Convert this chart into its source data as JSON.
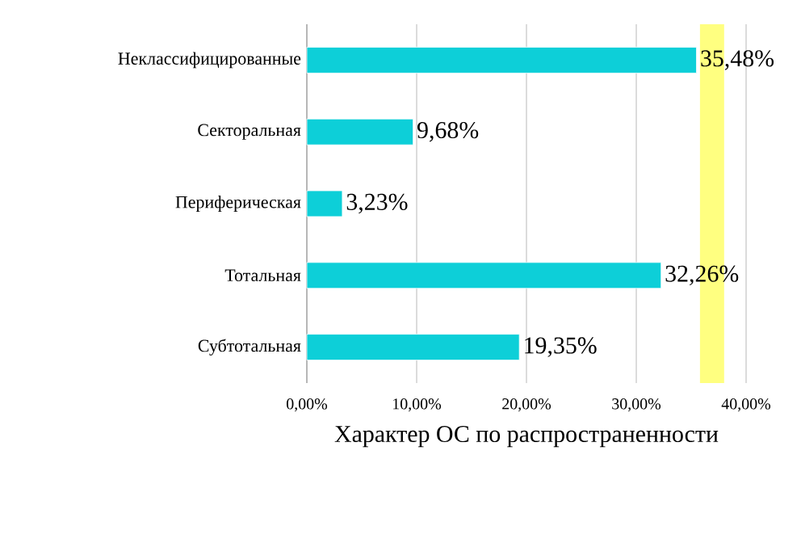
{
  "chart_data": {
    "type": "bar",
    "orientation": "horizontal",
    "xlabel": "Характер ОС по распространенности",
    "categories": [
      "Неклассифицированные",
      "Секторальная",
      "Периферическая",
      "Тотальная",
      "Субтотальная"
    ],
    "values": [
      35.48,
      9.68,
      3.23,
      32.26,
      19.35
    ],
    "value_labels": [
      "35,48%",
      "9,68%",
      "3,23%",
      "32,26%",
      "19,35%"
    ],
    "color": "#0dcfd8",
    "xlim": [
      0,
      40
    ],
    "xticks": [
      {
        "value": 0,
        "label": "0,00%"
      },
      {
        "value": 10,
        "label": "10,00%"
      },
      {
        "value": 20,
        "label": "20,00%"
      },
      {
        "value": 30,
        "label": "30,00%"
      },
      {
        "value": 40,
        "label": "40,00%"
      }
    ],
    "bands": [
      {
        "axis": "x",
        "from": 35.8,
        "to": 38.0,
        "color": "#ffff80"
      }
    ],
    "grid": "x"
  }
}
